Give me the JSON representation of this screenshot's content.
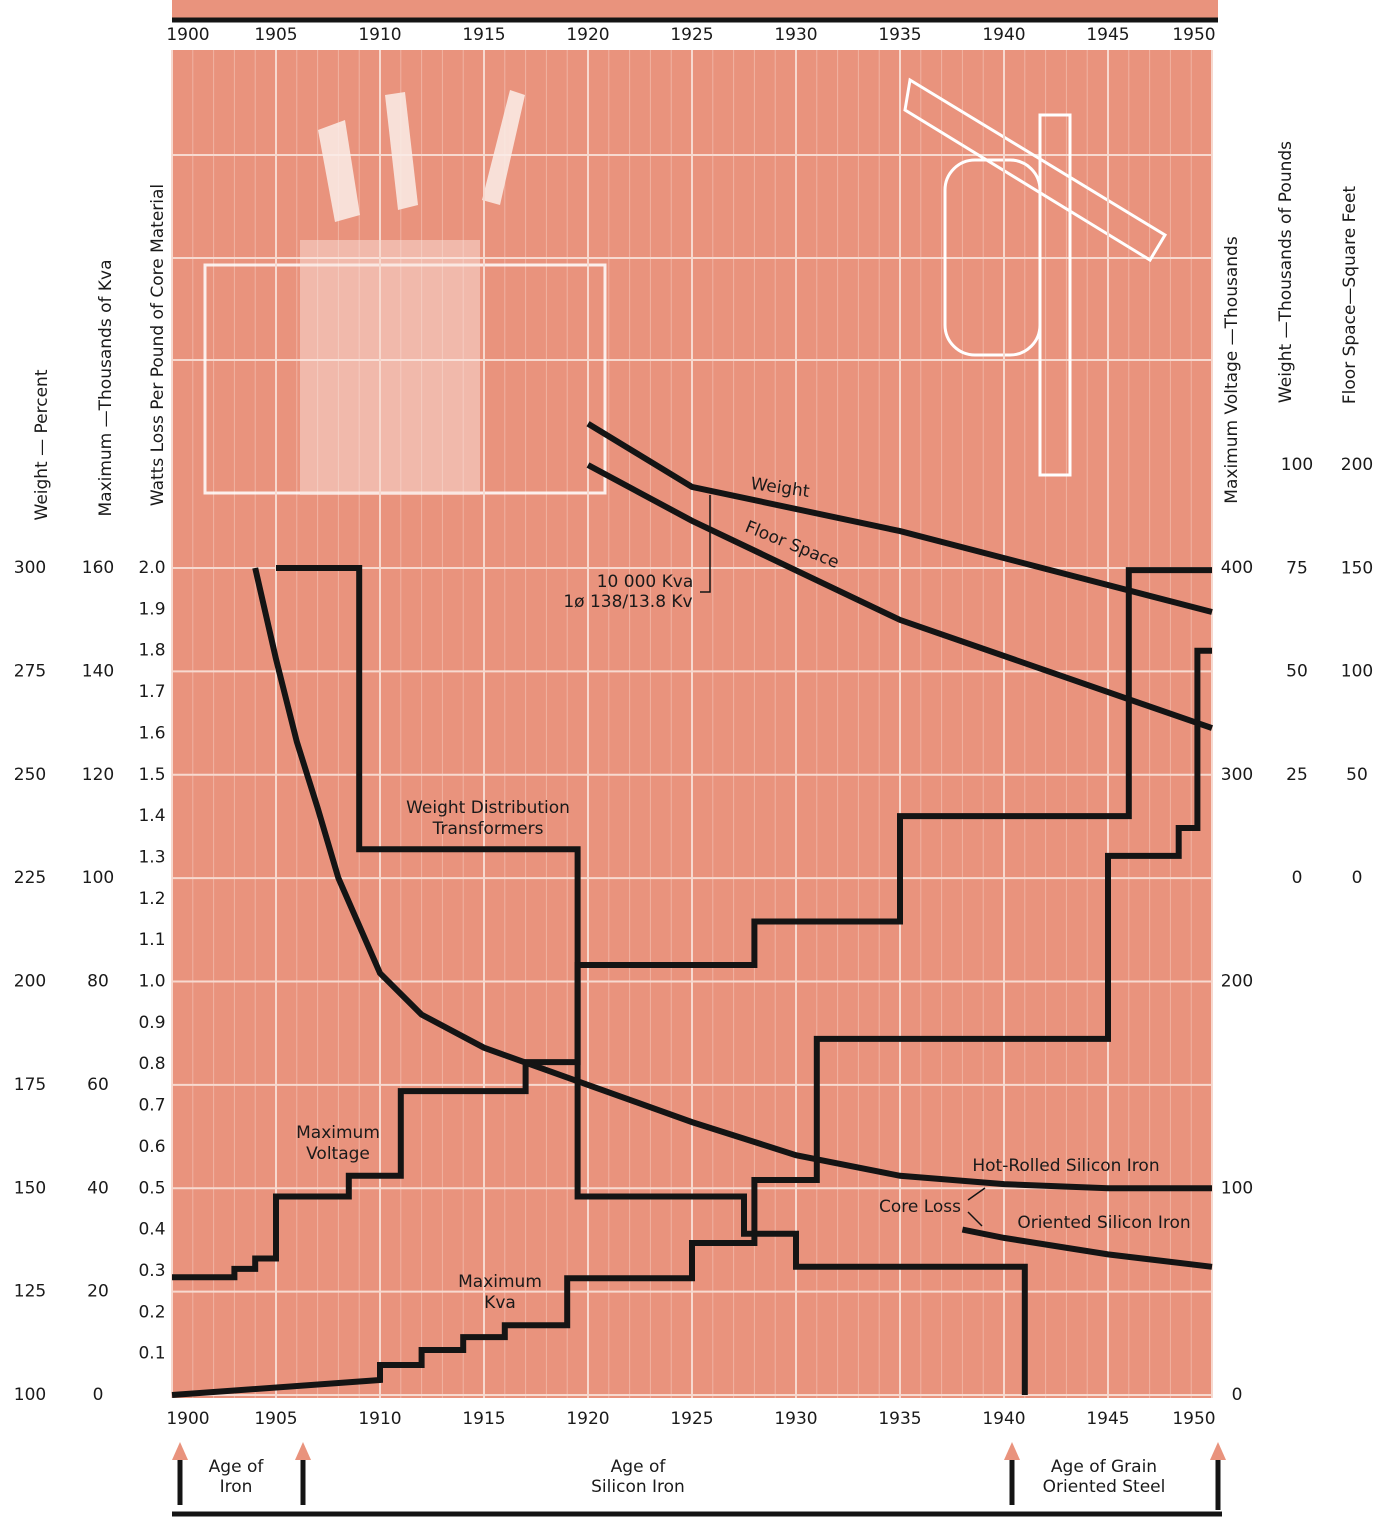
{
  "chart_data": {
    "type": "line",
    "xlim": [
      1900,
      1950
    ],
    "xticks": [
      1900,
      1905,
      1910,
      1915,
      1920,
      1925,
      1930,
      1935,
      1940,
      1945,
      1950
    ],
    "grid": true,
    "background": "#e9937d",
    "line_color": "#141414",
    "axes": [
      {
        "label": "Weight — Percent",
        "lim": [
          100,
          300
        ],
        "ticks": [
          100,
          125,
          150,
          175,
          200,
          225,
          250,
          275,
          300
        ]
      },
      {
        "label": "Maximum —Thousands of Kva",
        "lim": [
          0,
          160
        ],
        "ticks": [
          0,
          20,
          40,
          60,
          80,
          100,
          120,
          140,
          160
        ]
      },
      {
        "label": "Watts Loss Per Pound of Core Material",
        "lim": [
          0,
          2
        ],
        "ticks": [
          0.1,
          0.2,
          0.3,
          0.4,
          0.5,
          0.6,
          0.7,
          0.8,
          0.9,
          {
            "value": 1,
            "label": "1.0"
          },
          1.1,
          1.2,
          1.3,
          1.4,
          1.5,
          1.6,
          1.7,
          1.8,
          1.9,
          {
            "value": 2,
            "label": "2.0"
          }
        ]
      },
      {
        "label": "Maximum Voltage —Thousands",
        "lim": [
          0,
          400
        ],
        "ticks": [
          0,
          100,
          200,
          300,
          400
        ]
      },
      {
        "label": "Weight —Thousands of Pounds",
        "lim": [
          0,
          100
        ],
        "ticks": [
          0,
          25,
          50,
          75,
          100
        ]
      },
      {
        "label": "Floor Space—Square Feet",
        "lim": [
          0,
          200
        ],
        "ticks": [
          0,
          50,
          100,
          150,
          200
        ]
      }
    ],
    "series": [
      {
        "name": "Weight Distribution Transformers",
        "axis": 0,
        "x": [
          1905,
          1909,
          1909,
          1919.5,
          1919.5,
          1927.5,
          1927.5,
          1930,
          1930,
          1941,
          1941
        ],
        "values": [
          300,
          300,
          232,
          232,
          148,
          148,
          139,
          139,
          131,
          131,
          100
        ]
      },
      {
        "name": "Maximum Voltage",
        "axis": 3,
        "x": [
          1900,
          1903,
          1903,
          1904,
          1904,
          1905,
          1905,
          1908.5,
          1908.5,
          1911,
          1911,
          1917,
          1917,
          1919.5,
          1919.5,
          1928,
          1928,
          1935,
          1935,
          1946,
          1946,
          1950
        ],
        "values": [
          57,
          57,
          61,
          61,
          66,
          66,
          96,
          96,
          106,
          106,
          147,
          147,
          161,
          161,
          208,
          208,
          229,
          229,
          280,
          280,
          399,
          399
        ]
      },
      {
        "name": "Maximum Kva",
        "axis": 1,
        "x": [
          1900,
          1910,
          1910,
          1912,
          1912,
          1914,
          1914,
          1916,
          1916,
          1919,
          1919,
          1925,
          1925,
          1928,
          1928,
          1931,
          1931,
          1945,
          1945,
          1948.4,
          1948.4,
          1949.3,
          1949.3,
          1950
        ],
        "values": [
          0,
          2.9,
          5.8,
          5.8,
          8.7,
          8.7,
          11.2,
          11.2,
          13.5,
          13.5,
          22.6,
          22.6,
          29.4,
          29.4,
          41.6,
          41.6,
          68.9,
          68.9,
          104.3,
          104.3,
          109.7,
          109.7,
          144,
          144
        ]
      },
      {
        "name": "Hot-Rolled Silicon Iron",
        "axis": 2,
        "x": [
          1904,
          1905,
          1906,
          1907,
          1908,
          1910,
          1912,
          1915,
          1920,
          1925,
          1930,
          1935,
          1940,
          1945,
          1950
        ],
        "values": [
          2,
          1.78,
          1.58,
          1.42,
          1.25,
          1.02,
          0.92,
          0.84,
          0.75,
          0.66,
          0.58,
          0.53,
          0.51,
          0.5,
          0.5
        ]
      },
      {
        "name": "Oriented Silicon Iron",
        "axis": 2,
        "x": [
          1938,
          1940,
          1945,
          1950
        ],
        "values": [
          0.4,
          0.38,
          0.34,
          0.31
        ]
      },
      {
        "name": "Weight",
        "axis": 4,
        "x": [
          1920,
          1925,
          1935,
          1950
        ],
        "values": [
          110,
          94.7,
          84,
          64.4
        ]
      },
      {
        "name": "Floor Space",
        "axis": 5,
        "x": [
          1920,
          1925,
          1935,
          1950
        ],
        "values": [
          200,
          173,
          125,
          72.6
        ]
      }
    ],
    "annotations": [
      "10 000 Kva",
      "1ø 138/13.8 Kv",
      "Core Loss"
    ],
    "ages": [
      "Age of Iron",
      "Age of Silicon Iron",
      "Age of Grain Oriented Steel"
    ]
  }
}
